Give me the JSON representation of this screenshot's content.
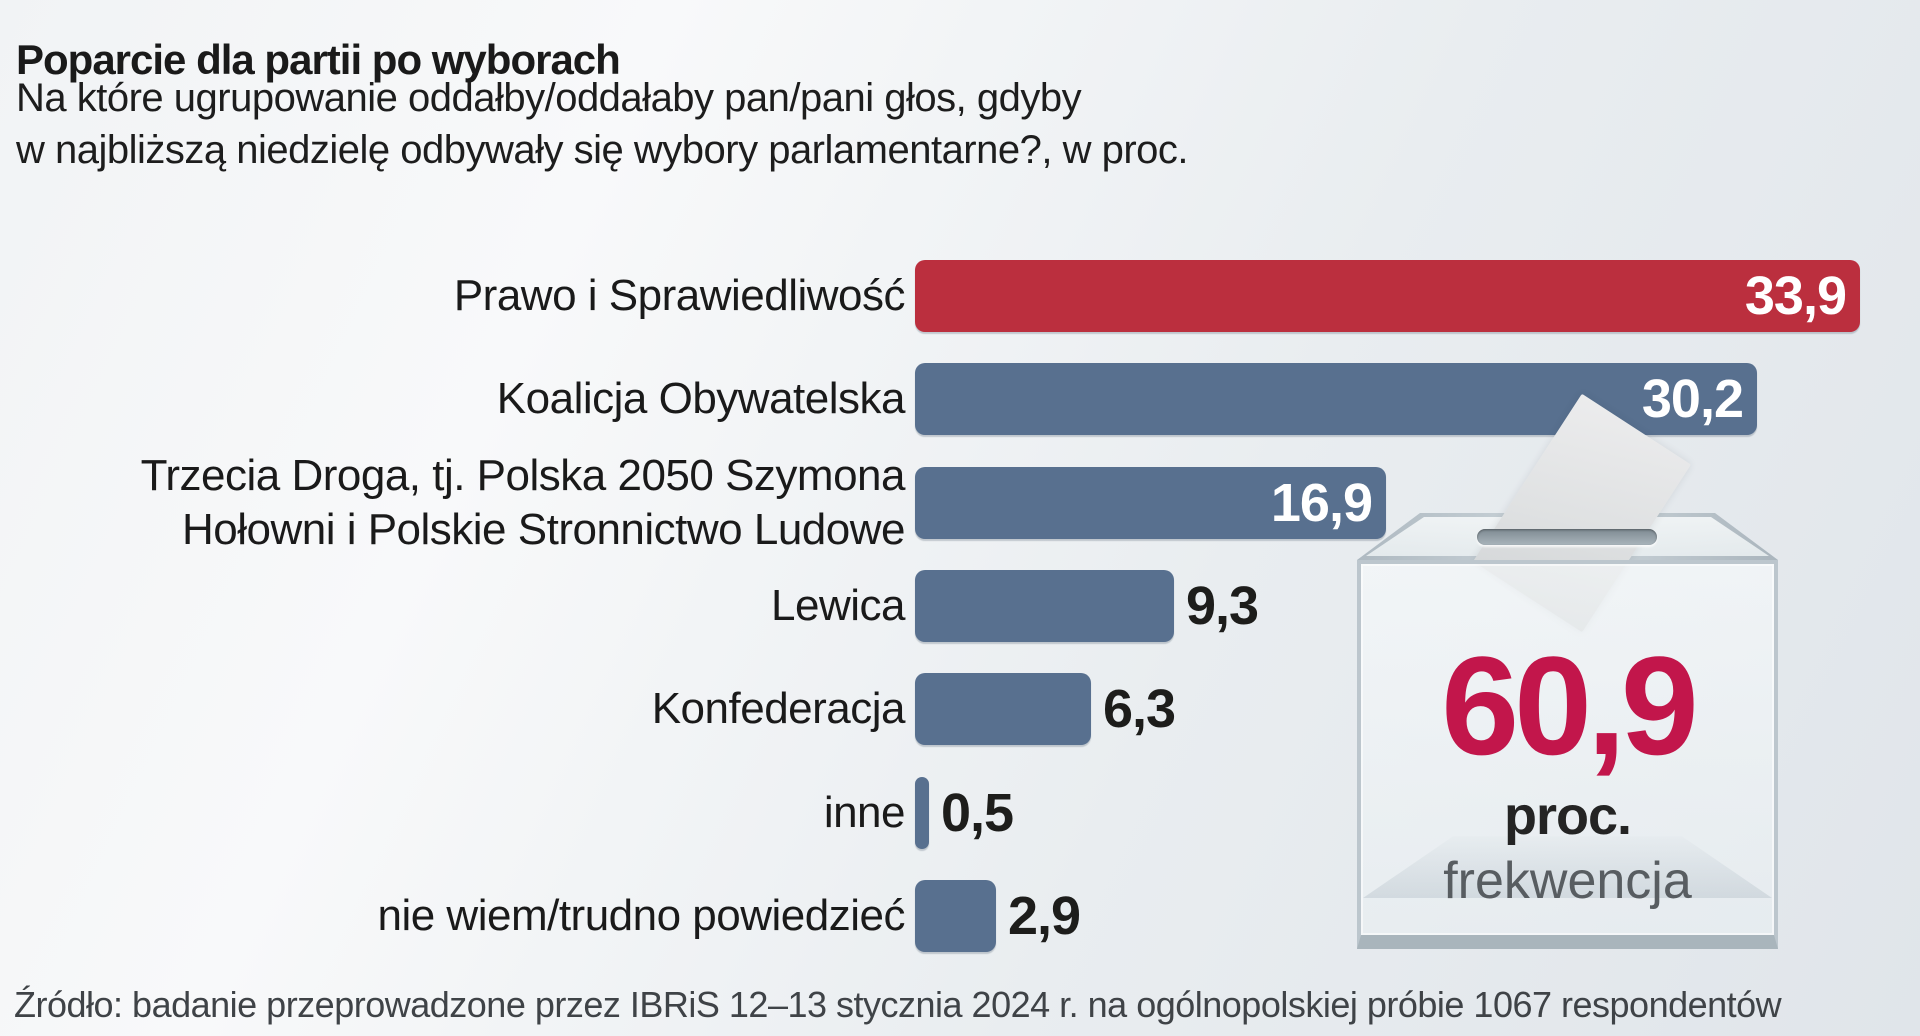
{
  "header": {
    "title": "Poparcie dla partii po wyborach",
    "subtitle_line1": "Na które ugrupowanie oddałby/oddałaby pan/pani głos, gdyby",
    "subtitle_line2": "w najbliższą niedzielę odbywały się wybory parlamentarne?, w proc."
  },
  "chart_data": {
    "type": "bar",
    "orientation": "horizontal",
    "title": "Poparcie dla partii po wyborach",
    "unit": "proc.",
    "categories": [
      "Prawo i Sprawiedliwość",
      "Koalicja Obywatelska",
      "Trzecia Droga, tj. Polska 2050 Szymona\nHołowni i Polskie Stronnictwo Ludowe",
      "Lewica",
      "Konfederacja",
      "inne",
      "nie wiem/trudno powiedzieć"
    ],
    "values": [
      33.9,
      30.2,
      16.9,
      9.3,
      6.3,
      0.5,
      2.9
    ],
    "value_labels": [
      "33,9",
      "30,2",
      "16,9",
      "9,3",
      "6,3",
      "0,5",
      "2,9"
    ],
    "value_inside": [
      true,
      true,
      true,
      false,
      false,
      false,
      false
    ],
    "bar_colors": [
      "#bb2f3e",
      "#58708f",
      "#58708f",
      "#58708f",
      "#58708f",
      "#58708f",
      "#58708f"
    ],
    "xlim": [
      0,
      33.9
    ],
    "grid": false,
    "legend": null
  },
  "turnout": {
    "value": "60,9",
    "unit": "proc.",
    "caption": "frekwencja",
    "value_color": "#c2164b"
  },
  "source": "Źródło: badanie przeprowadzone przez IBRiS 12–13 stycznia 2024 r. na ogólnopolskiej próbie 1067 respondentów",
  "colors": {
    "bar_red": "#bb2f3e",
    "bar_blue": "#58708f",
    "turnout_accent": "#c2164b",
    "text_dark": "#1d1d1b",
    "value_inside_text": "#ffffff",
    "background": "#edf0f3"
  }
}
